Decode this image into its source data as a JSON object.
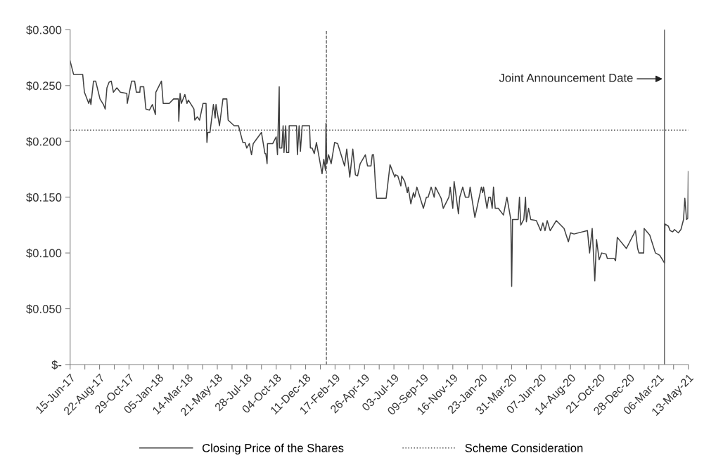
{
  "chart_data": {
    "type": "line",
    "xlim": [
      "2017-06-15",
      "2021-05-13"
    ],
    "ylim": [
      0,
      0.3
    ],
    "yticks": [
      {
        "value": 0,
        "label": "$-"
      },
      {
        "value": 0.05,
        "label": "$0.050"
      },
      {
        "value": 0.1,
        "label": "$0.100"
      },
      {
        "value": 0.15,
        "label": "$0.150"
      },
      {
        "value": 0.2,
        "label": "$0.200"
      },
      {
        "value": 0.25,
        "label": "$0.250"
      },
      {
        "value": 0.3,
        "label": "$0.300"
      }
    ],
    "xticks": [
      {
        "value": "2017-06-15",
        "label": "15-Jun-17"
      },
      {
        "value": "2017-07-19",
        "label": null
      },
      {
        "value": "2017-08-22",
        "label": "22-Aug-17"
      },
      {
        "value": "2017-09-25",
        "label": null
      },
      {
        "value": "2017-10-29",
        "label": "29-Oct-17"
      },
      {
        "value": "2017-12-02",
        "label": null
      },
      {
        "value": "2018-01-05",
        "label": "05-Jan-18"
      },
      {
        "value": "2018-02-08",
        "label": null
      },
      {
        "value": "2018-03-14",
        "label": "14-Mar-18"
      },
      {
        "value": "2018-04-17",
        "label": null
      },
      {
        "value": "2018-05-21",
        "label": "21-May-18"
      },
      {
        "value": "2018-06-24",
        "label": null
      },
      {
        "value": "2018-07-28",
        "label": "28-Jul-18"
      },
      {
        "value": "2018-08-31",
        "label": null
      },
      {
        "value": "2018-10-04",
        "label": "04-Oct-18"
      },
      {
        "value": "2018-11-07",
        "label": null
      },
      {
        "value": "2018-12-11",
        "label": "11-Dec-18"
      },
      {
        "value": "2019-01-14",
        "label": null
      },
      {
        "value": "2019-02-17",
        "label": "17-Feb-19"
      },
      {
        "value": "2019-03-23",
        "label": null
      },
      {
        "value": "2019-04-26",
        "label": "26-Apr-19"
      },
      {
        "value": "2019-05-30",
        "label": null
      },
      {
        "value": "2019-07-03",
        "label": "03-Jul-19"
      },
      {
        "value": "2019-08-06",
        "label": null
      },
      {
        "value": "2019-09-09",
        "label": "09-Sep-19"
      },
      {
        "value": "2019-10-13",
        "label": null
      },
      {
        "value": "2019-11-16",
        "label": "16-Nov-19"
      },
      {
        "value": "2019-12-20",
        "label": null
      },
      {
        "value": "2020-01-23",
        "label": "23-Jan-20"
      },
      {
        "value": "2020-02-26",
        "label": null
      },
      {
        "value": "2020-03-31",
        "label": "31-Mar-20"
      },
      {
        "value": "2020-05-04",
        "label": null
      },
      {
        "value": "2020-06-07",
        "label": "07-Jun-20"
      },
      {
        "value": "2020-07-11",
        "label": null
      },
      {
        "value": "2020-08-14",
        "label": "14-Aug-20"
      },
      {
        "value": "2020-09-17",
        "label": null
      },
      {
        "value": "2020-10-21",
        "label": "21-Oct-20"
      },
      {
        "value": "2020-11-24",
        "label": null
      },
      {
        "value": "2020-12-28",
        "label": "28-Dec-20"
      },
      {
        "value": "2021-01-31",
        "label": null
      },
      {
        "value": "2021-03-06",
        "label": "06-Mar-21"
      },
      {
        "value": "2021-04-09",
        "label": null
      },
      {
        "value": "2021-05-13",
        "label": "13-May-21"
      }
    ],
    "grid": false,
    "legend": "bottom",
    "series": [
      {
        "name": "Closing Price of the Shares",
        "color": "#404040",
        "line_style": "solid",
        "x": [
          "2017-06-15",
          "2017-06-23",
          "2017-07-14",
          "2017-07-18",
          "2017-07-28",
          "2017-07-31",
          "2017-08-02",
          "2017-08-08",
          "2017-08-13",
          "2017-08-23",
          "2017-08-31",
          "2017-09-04",
          "2017-09-08",
          "2017-09-13",
          "2017-09-18",
          "2017-09-23",
          "2017-10-01",
          "2017-10-09",
          "2017-10-24",
          "2017-10-25",
          "2017-11-04",
          "2017-11-11",
          "2017-11-15",
          "2017-11-23",
          "2017-11-24",
          "2017-12-02",
          "2017-12-07",
          "2017-12-15",
          "2017-12-22",
          "2017-12-29",
          "2017-12-30",
          "2018-01-12",
          "2018-01-16",
          "2018-01-30",
          "2018-02-09",
          "2018-02-20",
          "2018-02-21",
          "2018-02-24",
          "2018-02-27",
          "2018-03-07",
          "2018-03-12",
          "2018-03-15",
          "2018-03-28",
          "2018-03-30",
          "2018-04-05",
          "2018-04-10",
          "2018-04-18",
          "2018-04-25",
          "2018-04-27",
          "2018-04-29",
          "2018-05-04",
          "2018-05-12",
          "2018-05-16",
          "2018-05-18",
          "2018-05-26",
          "2018-06-03",
          "2018-06-12",
          "2018-06-15",
          "2018-06-29",
          "2018-07-09",
          "2018-07-19",
          "2018-07-24",
          "2018-07-28",
          "2018-08-03",
          "2018-08-08",
          "2018-08-12",
          "2018-08-31",
          "2018-09-08",
          "2018-09-10",
          "2018-09-13",
          "2018-09-14",
          "2018-09-26",
          "2018-10-04",
          "2018-10-07",
          "2018-10-11",
          "2018-10-12",
          "2018-10-17",
          "2018-10-20",
          "2018-10-22",
          "2018-10-26",
          "2018-10-28",
          "2018-11-02",
          "2018-11-03",
          "2018-11-20",
          "2018-11-22",
          "2018-11-26",
          "2018-11-29",
          "2018-12-03",
          "2018-12-20",
          "2018-12-22",
          "2018-12-26",
          "2018-12-31",
          "2019-01-05",
          "2019-01-18",
          "2019-01-22",
          "2019-01-26",
          "2019-01-27",
          "2019-01-29",
          "2019-02-02",
          "2019-02-08",
          "2019-02-16",
          "2019-02-23",
          "2019-03-11",
          "2019-03-16",
          "2019-03-23",
          "2019-03-30",
          "2019-04-05",
          "2019-04-10",
          "2019-04-16",
          "2019-04-28",
          "2019-05-03",
          "2019-05-11",
          "2019-05-14",
          "2019-05-17",
          "2019-05-19",
          "2019-05-21",
          "2019-05-24",
          "2019-06-15",
          "2019-06-24",
          "2019-07-05",
          "2019-07-07",
          "2019-07-12",
          "2019-07-19",
          "2019-07-21",
          "2019-07-28",
          "2019-08-03",
          "2019-08-05",
          "2019-08-11",
          "2019-08-17",
          "2019-08-20",
          "2019-08-25",
          "2019-09-09",
          "2019-09-16",
          "2019-09-20",
          "2019-09-27",
          "2019-10-04",
          "2019-10-07",
          "2019-10-20",
          "2019-10-25",
          "2019-11-07",
          "2019-11-10",
          "2019-11-16",
          "2019-11-19",
          "2019-11-24",
          "2019-11-29",
          "2019-12-02",
          "2019-12-09",
          "2019-12-15",
          "2019-12-23",
          "2019-12-26",
          "2020-01-06",
          "2020-01-21",
          "2020-01-24",
          "2020-01-26",
          "2020-02-03",
          "2020-02-07",
          "2020-02-11",
          "2020-02-15",
          "2020-02-18",
          "2020-02-22",
          "2020-02-29",
          "2020-03-12",
          "2020-03-20",
          "2020-03-29",
          "2020-03-31",
          "2020-04-02",
          "2020-04-15",
          "2020-04-18",
          "2020-04-21",
          "2020-04-28",
          "2020-05-02",
          "2020-05-04",
          "2020-05-09",
          "2020-05-14",
          "2020-05-27",
          "2020-06-06",
          "2020-06-11",
          "2020-06-16",
          "2020-06-21",
          "2020-06-28",
          "2020-07-12",
          "2020-07-30",
          "2020-08-09",
          "2020-08-14",
          "2020-08-22",
          "2020-09-22",
          "2020-09-27",
          "2020-10-03",
          "2020-10-09",
          "2020-10-13",
          "2020-10-19",
          "2020-10-25",
          "2020-11-04",
          "2020-11-07",
          "2020-11-23",
          "2020-11-26",
          "2020-11-30",
          "2020-12-21",
          "2021-01-11",
          "2021-01-16",
          "2021-01-19",
          "2021-01-30",
          "2021-01-31",
          "2021-02-13",
          "2021-02-26",
          "2021-03-08",
          "2021-03-19",
          "2021-03-20",
          "2021-03-28",
          "2021-04-01",
          "2021-04-07",
          "2021-04-11",
          "2021-04-20",
          "2021-04-26",
          "2021-05-02",
          "2021-05-05",
          "2021-05-09",
          "2021-05-12",
          "2021-05-13"
        ],
        "values": [
          0.272,
          0.26,
          0.26,
          0.244,
          0.234,
          0.238,
          0.233,
          0.254,
          0.254,
          0.238,
          0.233,
          0.229,
          0.248,
          0.253,
          0.254,
          0.244,
          0.248,
          0.244,
          0.243,
          0.234,
          0.254,
          0.254,
          0.244,
          0.244,
          0.249,
          0.249,
          0.229,
          0.228,
          0.233,
          0.224,
          0.244,
          0.254,
          0.234,
          0.234,
          0.238,
          0.238,
          0.218,
          0.243,
          0.234,
          0.242,
          0.234,
          0.237,
          0.229,
          0.219,
          0.222,
          0.219,
          0.234,
          0.234,
          0.199,
          0.208,
          0.208,
          0.233,
          0.221,
          0.233,
          0.214,
          0.238,
          0.238,
          0.219,
          0.214,
          0.214,
          0.199,
          0.199,
          0.194,
          0.198,
          0.188,
          0.198,
          0.208,
          0.189,
          0.189,
          0.18,
          0.198,
          0.198,
          0.204,
          0.188,
          0.249,
          0.194,
          0.194,
          0.214,
          0.19,
          0.214,
          0.19,
          0.19,
          0.214,
          0.214,
          0.188,
          0.214,
          0.191,
          0.214,
          0.214,
          0.194,
          0.194,
          0.189,
          0.199,
          0.171,
          0.184,
          0.174,
          0.216,
          0.18,
          0.188,
          0.18,
          0.199,
          0.198,
          0.178,
          0.193,
          0.168,
          0.193,
          0.17,
          0.169,
          0.18,
          0.188,
          0.178,
          0.178,
          0.188,
          0.188,
          0.177,
          0.163,
          0.149,
          0.149,
          0.179,
          0.168,
          0.17,
          0.169,
          0.16,
          0.169,
          0.164,
          0.154,
          0.159,
          0.144,
          0.154,
          0.15,
          0.159,
          0.14,
          0.15,
          0.15,
          0.159,
          0.15,
          0.159,
          0.149,
          0.14,
          0.15,
          0.159,
          0.14,
          0.164,
          0.15,
          0.135,
          0.15,
          0.159,
          0.15,
          0.15,
          0.159,
          0.132,
          0.159,
          0.154,
          0.159,
          0.14,
          0.15,
          0.15,
          0.14,
          0.159,
          0.14,
          0.14,
          0.134,
          0.15,
          0.13,
          0.07,
          0.13,
          0.13,
          0.15,
          0.125,
          0.13,
          0.15,
          0.128,
          0.14,
          0.13,
          0.129,
          0.12,
          0.127,
          0.12,
          0.129,
          0.12,
          0.129,
          0.122,
          0.11,
          0.118,
          0.117,
          0.12,
          0.1,
          0.122,
          0.075,
          0.112,
          0.094,
          0.1,
          0.099,
          0.095,
          0.095,
          0.093,
          0.114,
          0.104,
          0.12,
          0.104,
          0.1,
          0.1,
          0.122,
          0.116,
          0.1,
          0.098,
          0.091,
          0.126,
          0.124,
          0.12,
          0.119,
          0.121,
          0.118,
          0.121,
          0.13,
          0.149,
          0.13,
          0.131,
          0.173
        ]
      },
      {
        "name": "Scheme Consideration",
        "color": "#505050",
        "line_style": "dotted",
        "x": [
          "2017-06-15",
          "2021-05-13"
        ],
        "values": [
          0.21,
          0.21
        ]
      }
    ],
    "ref_lines": [
      {
        "axis": "x",
        "value": "2019-01-28",
        "label": null,
        "color": "#505050",
        "line_style": "dashed"
      },
      {
        "axis": "x",
        "value": "2021-03-19",
        "label": null,
        "color": "#505050",
        "line_style": "solid"
      }
    ],
    "annotations": [
      {
        "text": "Joint Announcement Date",
        "x": "2021-03-19",
        "y": 0.256
      }
    ]
  }
}
